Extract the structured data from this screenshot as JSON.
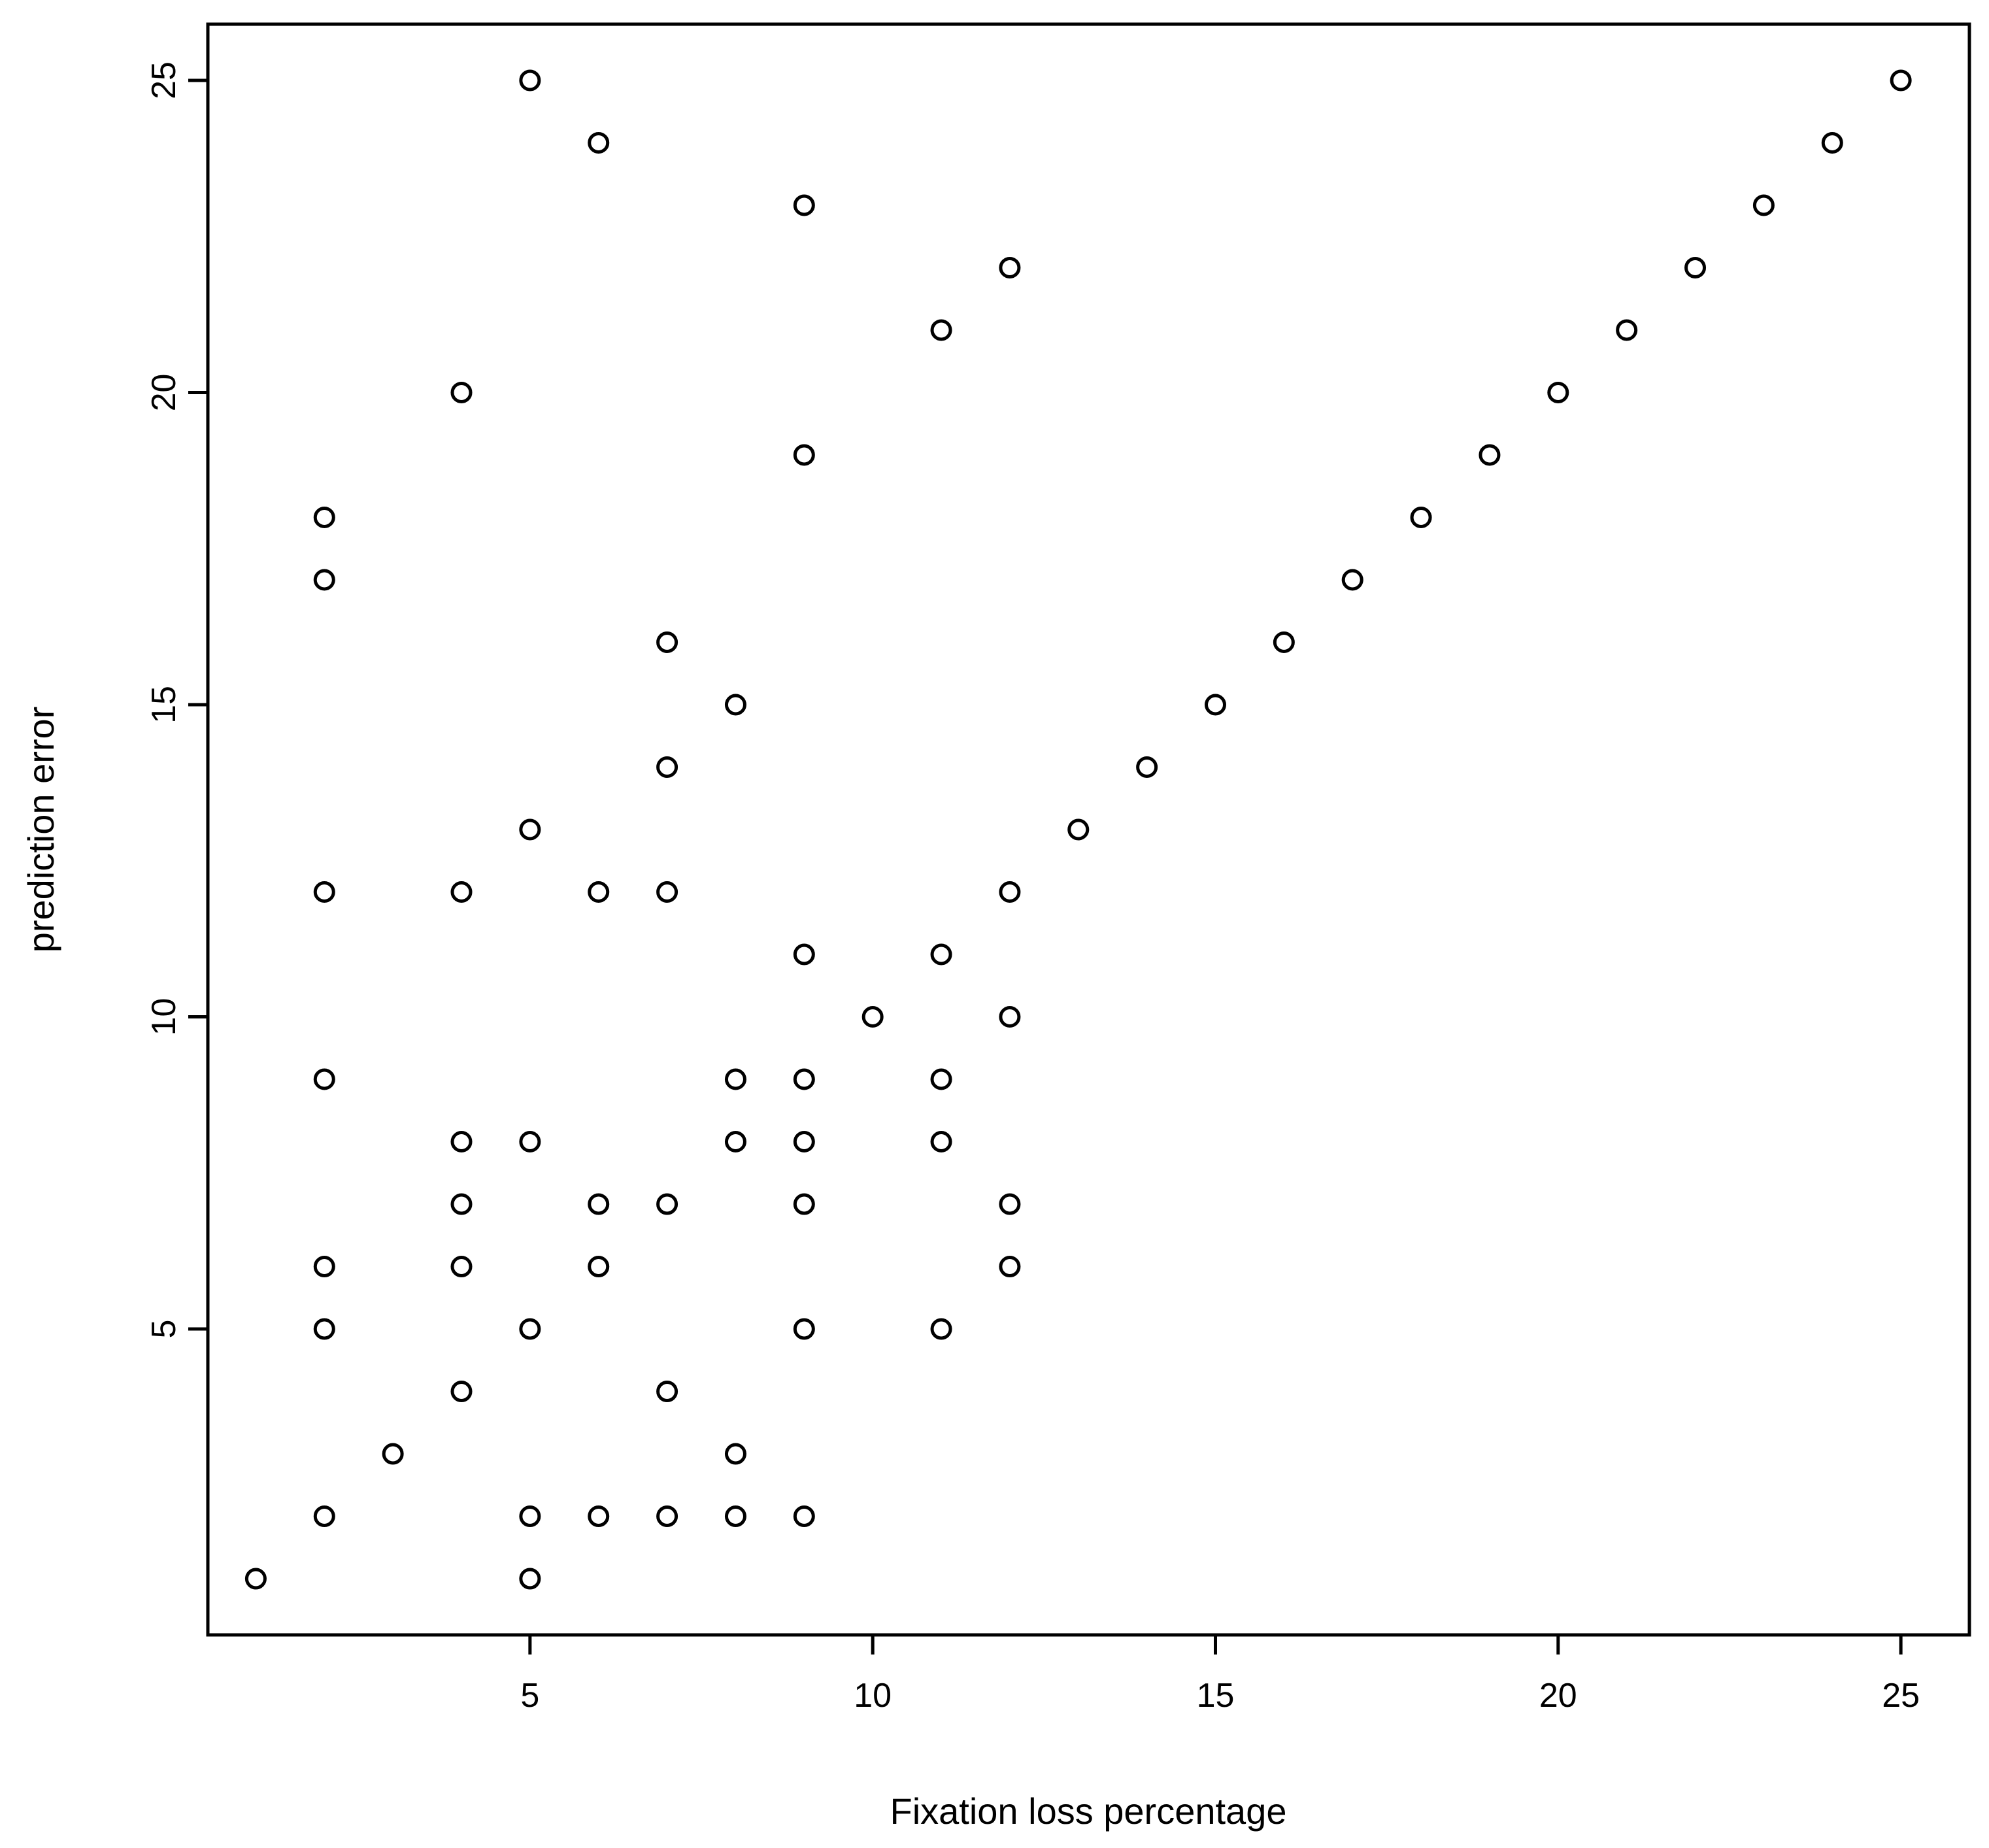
{
  "chart_data": {
    "type": "scatter",
    "title": "",
    "xlabel": "Fixation loss percentage",
    "ylabel": "prediction error",
    "xlim": [
      0.3,
      26
    ],
    "ylim": [
      0.1,
      25.9
    ],
    "xticks": [
      "5",
      "10",
      "15",
      "20",
      "25"
    ],
    "yticks": [
      "5",
      "10",
      "15",
      "20",
      "25"
    ],
    "grid": false,
    "marker": "open-circle",
    "points": [
      [
        1,
        1
      ],
      [
        2,
        2
      ],
      [
        2,
        5
      ],
      [
        2,
        6
      ],
      [
        2,
        9
      ],
      [
        2,
        12
      ],
      [
        2,
        17
      ],
      [
        2,
        18
      ],
      [
        3,
        3
      ],
      [
        4,
        4
      ],
      [
        4,
        6
      ],
      [
        4,
        7
      ],
      [
        4,
        8
      ],
      [
        4,
        12
      ],
      [
        4,
        20
      ],
      [
        5,
        1
      ],
      [
        5,
        2
      ],
      [
        5,
        5
      ],
      [
        5,
        8
      ],
      [
        5,
        13
      ],
      [
        5,
        25
      ],
      [
        6,
        2
      ],
      [
        6,
        6
      ],
      [
        6,
        7
      ],
      [
        6,
        12
      ],
      [
        6,
        24
      ],
      [
        7,
        2
      ],
      [
        7,
        4
      ],
      [
        7,
        7
      ],
      [
        7,
        12
      ],
      [
        7,
        14
      ],
      [
        7,
        16
      ],
      [
        8,
        2
      ],
      [
        8,
        3
      ],
      [
        8,
        8
      ],
      [
        8,
        9
      ],
      [
        8,
        15
      ],
      [
        9,
        2
      ],
      [
        9,
        5
      ],
      [
        9,
        7
      ],
      [
        9,
        8
      ],
      [
        9,
        9
      ],
      [
        9,
        11
      ],
      [
        9,
        19
      ],
      [
        9,
        23
      ],
      [
        10,
        10
      ],
      [
        11,
        5
      ],
      [
        11,
        8
      ],
      [
        11,
        9
      ],
      [
        11,
        11
      ],
      [
        11,
        21
      ],
      [
        12,
        6
      ],
      [
        12,
        7
      ],
      [
        12,
        10
      ],
      [
        12,
        12
      ],
      [
        12,
        22
      ],
      [
        13,
        13
      ],
      [
        14,
        14
      ],
      [
        15,
        15
      ],
      [
        16,
        16
      ],
      [
        17,
        17
      ],
      [
        18,
        18
      ],
      [
        19,
        19
      ],
      [
        20,
        20
      ],
      [
        21,
        21
      ],
      [
        22,
        22
      ],
      [
        23,
        23
      ],
      [
        24,
        24
      ],
      [
        25,
        25
      ]
    ]
  }
}
